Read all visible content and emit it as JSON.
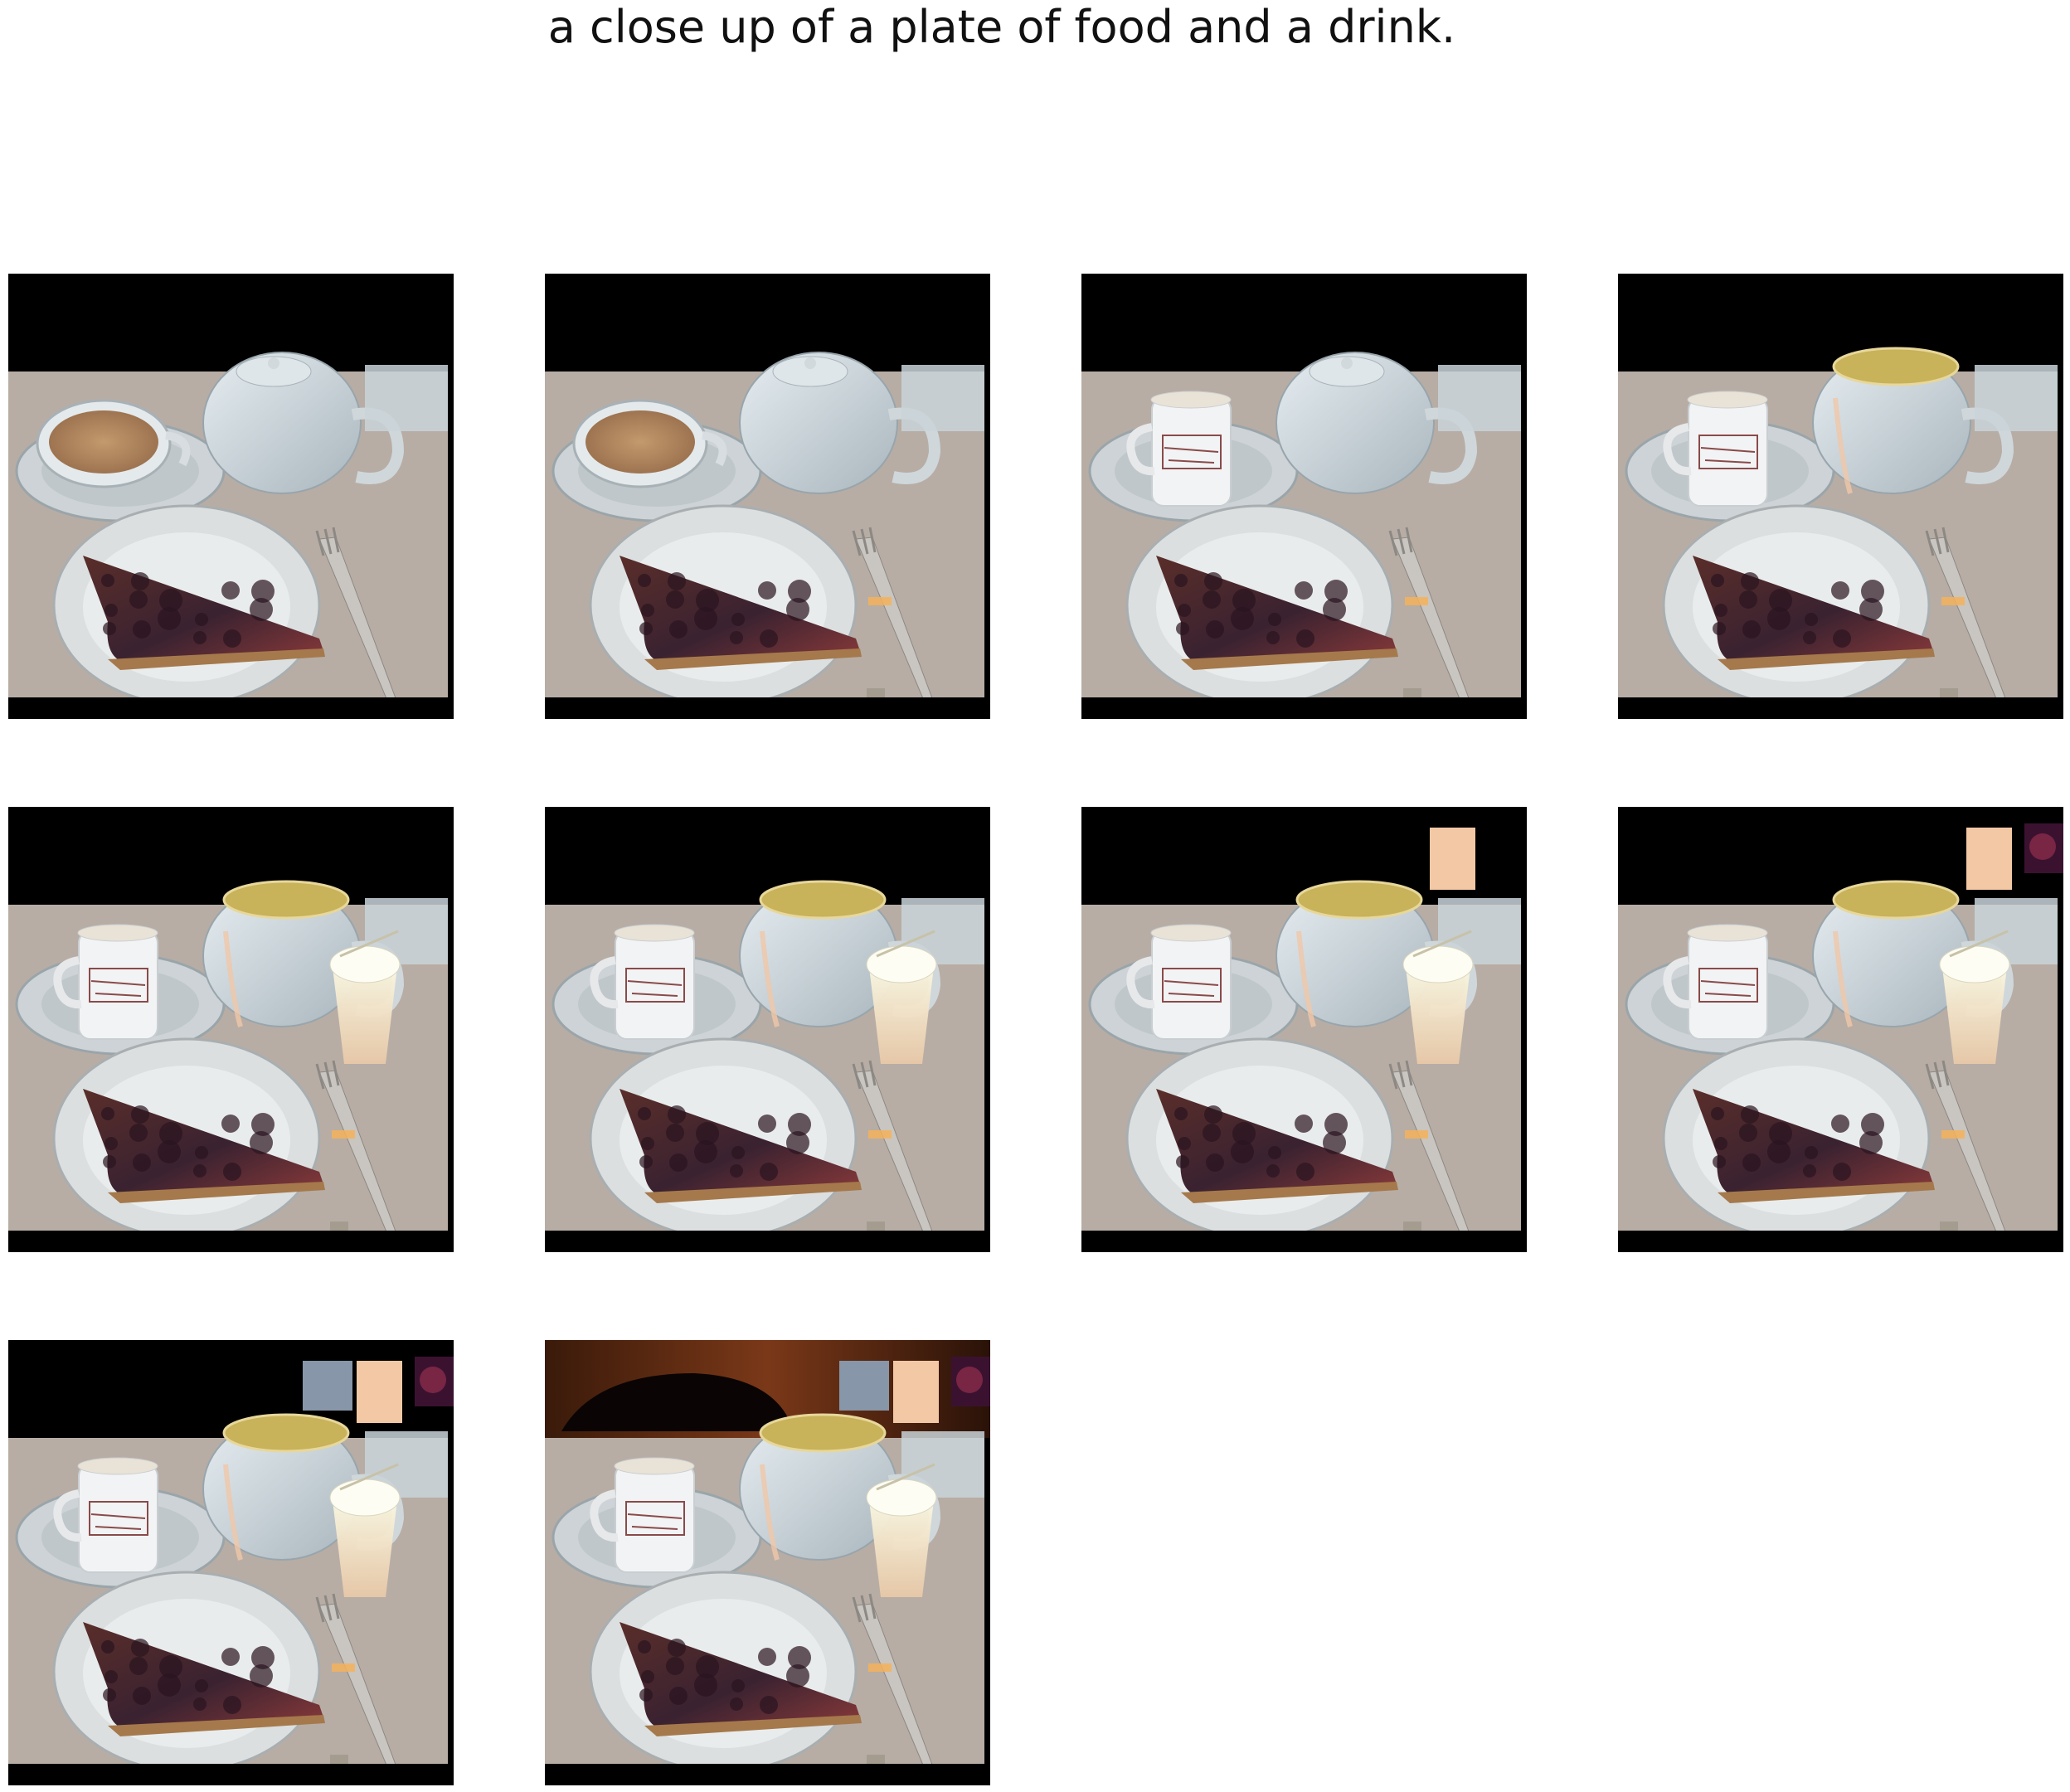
{
  "caption": "a close up of a plate of food and a drink.",
  "panels": [
    {
      "step": 1,
      "mug": false,
      "teapot_rim": false,
      "glass": false,
      "top_patches": 0,
      "wood_top": false
    },
    {
      "step": 2,
      "mug": false,
      "teapot_rim": false,
      "glass": false,
      "top_patches": 0,
      "wood_top": false
    },
    {
      "step": 3,
      "mug": true,
      "teapot_rim": false,
      "glass": false,
      "top_patches": 0,
      "wood_top": false
    },
    {
      "step": 4,
      "mug": true,
      "teapot_rim": true,
      "glass": false,
      "top_patches": 0,
      "wood_top": false
    },
    {
      "step": 5,
      "mug": true,
      "teapot_rim": true,
      "glass": true,
      "top_patches": 0,
      "wood_top": false
    },
    {
      "step": 6,
      "mug": true,
      "teapot_rim": true,
      "glass": true,
      "top_patches": 0,
      "wood_top": false
    },
    {
      "step": 7,
      "mug": true,
      "teapot_rim": true,
      "glass": true,
      "top_patches": 1,
      "wood_top": false
    },
    {
      "step": 8,
      "mug": true,
      "teapot_rim": true,
      "glass": true,
      "top_patches": 2,
      "wood_top": false
    },
    {
      "step": 9,
      "mug": true,
      "teapot_rim": true,
      "glass": true,
      "top_patches": 3,
      "wood_top": false
    },
    {
      "step": 10,
      "mug": true,
      "teapot_rim": true,
      "glass": true,
      "top_patches": 3,
      "wood_top": true
    }
  ]
}
